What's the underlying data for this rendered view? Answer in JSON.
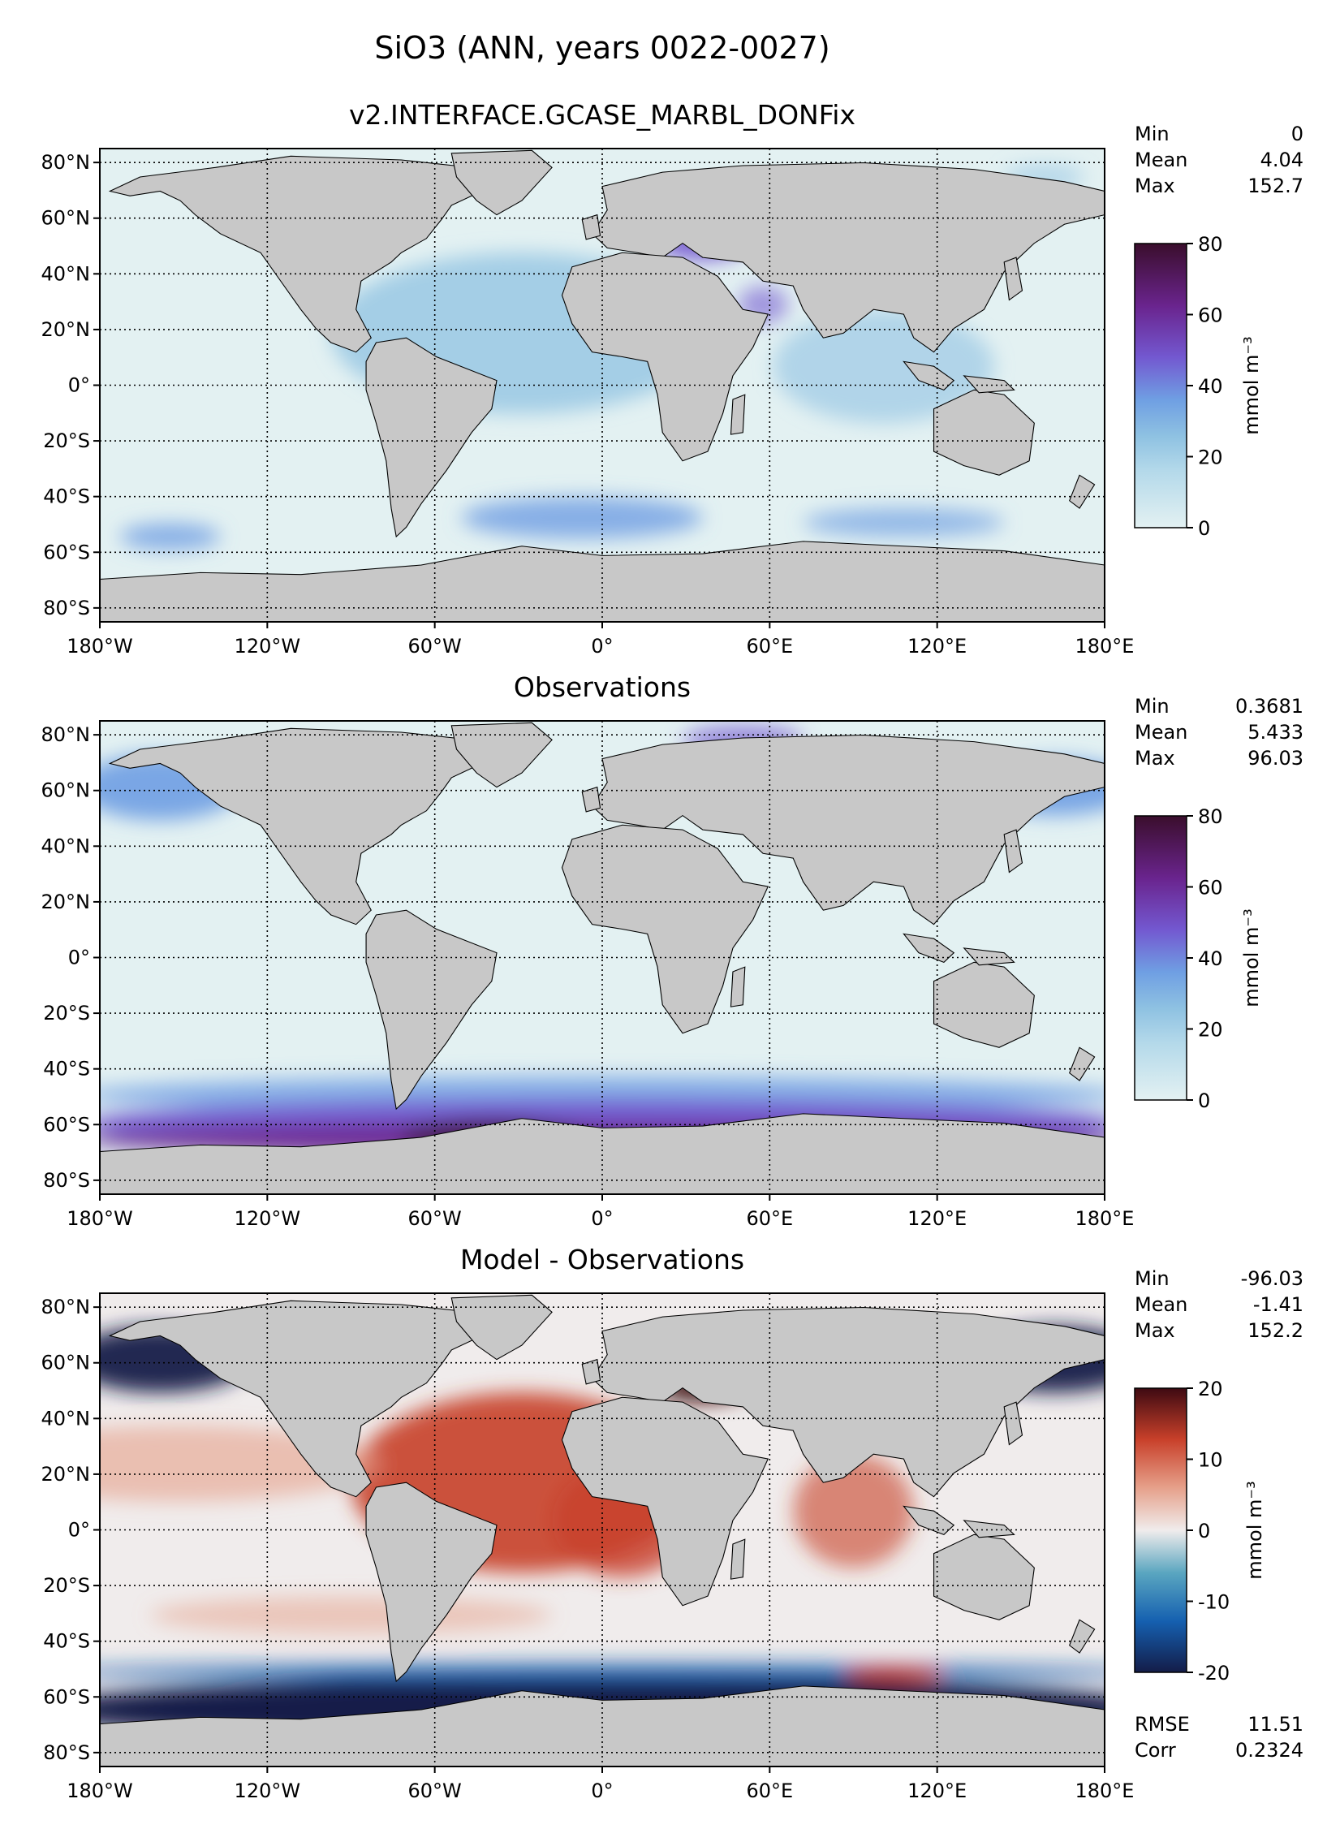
{
  "figure": {
    "suptitle": "SiO3 (ANN, years 0022-0027)"
  },
  "axes": {
    "lat_ticks": [
      "80°N",
      "60°N",
      "40°N",
      "20°N",
      "0°",
      "20°S",
      "40°S",
      "60°S",
      "80°S"
    ],
    "lon_ticks": [
      "180°W",
      "120°W",
      "60°W",
      "0°",
      "60°E",
      "120°E",
      "180°E"
    ]
  },
  "panels": [
    {
      "title": "v2.INTERFACE.GCASE_MARBL_DONFix",
      "stats": [
        {
          "label": "Min",
          "value": "0"
        },
        {
          "label": "Mean",
          "value": "4.04"
        },
        {
          "label": "Max",
          "value": "152.7"
        }
      ],
      "colorbar": {
        "ticks": [
          "0",
          "20",
          "40",
          "60",
          "80"
        ],
        "label": "mmol m⁻³",
        "range": [
          0,
          80
        ]
      }
    },
    {
      "title": "Observations",
      "stats": [
        {
          "label": "Min",
          "value": "0.3681"
        },
        {
          "label": "Mean",
          "value": "5.433"
        },
        {
          "label": "Max",
          "value": "96.03"
        }
      ],
      "colorbar": {
        "ticks": [
          "0",
          "20",
          "40",
          "60",
          "80"
        ],
        "label": "mmol m⁻³",
        "range": [
          0,
          80
        ]
      }
    },
    {
      "title": "Model - Observations",
      "stats": [
        {
          "label": "Min",
          "value": "-96.03"
        },
        {
          "label": "Mean",
          "value": "-1.41"
        },
        {
          "label": "Max",
          "value": "152.2"
        }
      ],
      "extra_stats": [
        {
          "label": "RMSE",
          "value": "11.51"
        },
        {
          "label": "Corr",
          "value": "0.2324"
        }
      ],
      "colorbar": {
        "ticks": [
          "-20",
          "-10",
          "0",
          "10",
          "20"
        ],
        "label": "mmol m⁻³",
        "range": [
          -20,
          20
        ]
      }
    }
  ],
  "colors": {
    "land": "#c8c8c8",
    "seq_low": "#e3f1f2",
    "seq_mid": "#8fc2e2",
    "seq_20": "#6f9fe3",
    "seq_40": "#7358d0",
    "seq_60": "#6a248e",
    "seq_high": "#3a0e2c",
    "div_neg_high": "#141c48",
    "div_neg_mid": "#1560b0",
    "div_neg_low": "#5aa6c0",
    "div_zero": "#f0ecec",
    "div_pos_low": "#e6a08a",
    "div_pos_mid": "#c8402a",
    "div_pos_high": "#3e0a12"
  }
}
